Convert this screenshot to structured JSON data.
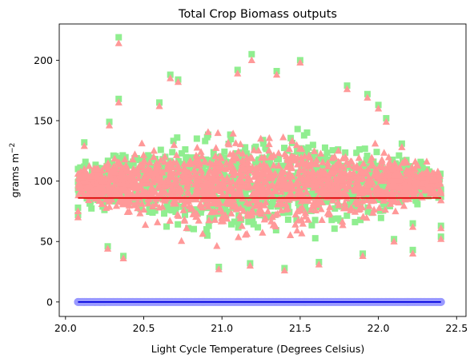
{
  "chart_data": {
    "type": "scatter",
    "title": "Total Crop Biomass outputs",
    "xlabel": "Light Cycle Temperature (Degrees Celsius)",
    "ylabel": "grams m",
    "ylabel_superscript": "−2",
    "xlim": [
      19.96,
      22.56
    ],
    "ylim": [
      -12,
      230
    ],
    "xticks": [
      20.0,
      20.5,
      21.0,
      21.5,
      22.0,
      22.5
    ],
    "xtick_labels": [
      "20.0",
      "20.5",
      "21.0",
      "21.5",
      "22.0",
      "22.5"
    ],
    "yticks": [
      0,
      50,
      100,
      150,
      200
    ],
    "ytick_labels": [
      "0",
      "50",
      "100",
      "150",
      "200"
    ],
    "grid": false,
    "legend": "none",
    "series": [
      {
        "marker": "square",
        "color": "#90ee90",
        "cloud": {
          "x_range": [
            20.08,
            22.4
          ],
          "center_x": 21.2,
          "center_y": 100,
          "y_low": 35,
          "y_high": 160,
          "count": 1400
        },
        "points": [
          {
            "x": 20.34,
            "y": 219
          },
          {
            "x": 21.19,
            "y": 205
          },
          {
            "x": 21.5,
            "y": 200
          },
          {
            "x": 20.08,
            "y": 110
          },
          {
            "x": 20.12,
            "y": 132
          },
          {
            "x": 20.08,
            "y": 78
          },
          {
            "x": 20.08,
            "y": 72
          },
          {
            "x": 20.12,
            "y": 112
          },
          {
            "x": 20.28,
            "y": 149
          },
          {
            "x": 20.34,
            "y": 168
          },
          {
            "x": 20.6,
            "y": 165
          },
          {
            "x": 20.67,
            "y": 188
          },
          {
            "x": 20.72,
            "y": 184
          },
          {
            "x": 21.1,
            "y": 192
          },
          {
            "x": 21.35,
            "y": 191
          },
          {
            "x": 21.8,
            "y": 179
          },
          {
            "x": 21.93,
            "y": 172
          },
          {
            "x": 22.0,
            "y": 163
          },
          {
            "x": 22.05,
            "y": 152
          },
          {
            "x": 22.15,
            "y": 131
          },
          {
            "x": 22.2,
            "y": 100
          },
          {
            "x": 22.24,
            "y": 95
          },
          {
            "x": 22.22,
            "y": 65
          },
          {
            "x": 22.22,
            "y": 43
          },
          {
            "x": 22.4,
            "y": 93
          },
          {
            "x": 22.4,
            "y": 87
          },
          {
            "x": 22.4,
            "y": 63
          },
          {
            "x": 22.4,
            "y": 54
          },
          {
            "x": 20.27,
            "y": 46
          },
          {
            "x": 20.37,
            "y": 38
          },
          {
            "x": 20.98,
            "y": 29
          },
          {
            "x": 21.18,
            "y": 32
          },
          {
            "x": 21.4,
            "y": 28
          },
          {
            "x": 21.62,
            "y": 33
          },
          {
            "x": 21.9,
            "y": 40
          },
          {
            "x": 22.1,
            "y": 52
          }
        ]
      },
      {
        "marker": "triangle",
        "color": "#ff9999",
        "cloud": {
          "x_range": [
            20.08,
            22.4
          ],
          "center_x": 21.2,
          "center_y": 100,
          "y_low": 37,
          "y_high": 158,
          "count": 1600
        },
        "points": [
          {
            "x": 20.34,
            "y": 214
          },
          {
            "x": 21.19,
            "y": 200
          },
          {
            "x": 21.5,
            "y": 198
          },
          {
            "x": 20.08,
            "y": 106
          },
          {
            "x": 20.12,
            "y": 129
          },
          {
            "x": 20.08,
            "y": 75
          },
          {
            "x": 20.08,
            "y": 70
          },
          {
            "x": 20.12,
            "y": 110
          },
          {
            "x": 20.28,
            "y": 146
          },
          {
            "x": 20.34,
            "y": 165
          },
          {
            "x": 20.6,
            "y": 162
          },
          {
            "x": 20.67,
            "y": 185
          },
          {
            "x": 20.72,
            "y": 182
          },
          {
            "x": 21.1,
            "y": 189
          },
          {
            "x": 21.35,
            "y": 188
          },
          {
            "x": 21.8,
            "y": 176
          },
          {
            "x": 21.93,
            "y": 169
          },
          {
            "x": 22.0,
            "y": 160
          },
          {
            "x": 22.05,
            "y": 149
          },
          {
            "x": 22.15,
            "y": 128
          },
          {
            "x": 22.2,
            "y": 97
          },
          {
            "x": 22.24,
            "y": 92
          },
          {
            "x": 22.22,
            "y": 62
          },
          {
            "x": 22.22,
            "y": 40
          },
          {
            "x": 22.4,
            "y": 90
          },
          {
            "x": 22.4,
            "y": 84
          },
          {
            "x": 22.4,
            "y": 61
          },
          {
            "x": 22.4,
            "y": 52
          },
          {
            "x": 20.27,
            "y": 44
          },
          {
            "x": 20.37,
            "y": 36
          },
          {
            "x": 20.98,
            "y": 27
          },
          {
            "x": 21.18,
            "y": 30
          },
          {
            "x": 21.4,
            "y": 26
          },
          {
            "x": 21.62,
            "y": 31
          },
          {
            "x": 21.9,
            "y": 38
          },
          {
            "x": 22.1,
            "y": 50
          }
        ]
      },
      {
        "marker": "circle",
        "color": "#9999ff",
        "points_x_range": [
          20.08,
          22.4
        ],
        "y": 0,
        "extra_x": [
          20.08,
          20.12,
          20.19,
          20.22,
          20.25,
          22.4
        ]
      }
    ],
    "fit_lines": [
      {
        "color": "#dd0000",
        "x": [
          20.08,
          22.4
        ],
        "y": [
          86,
          86
        ]
      },
      {
        "color": "#0000dd",
        "x": [
          20.08,
          22.4
        ],
        "y": [
          0,
          0
        ]
      }
    ]
  }
}
